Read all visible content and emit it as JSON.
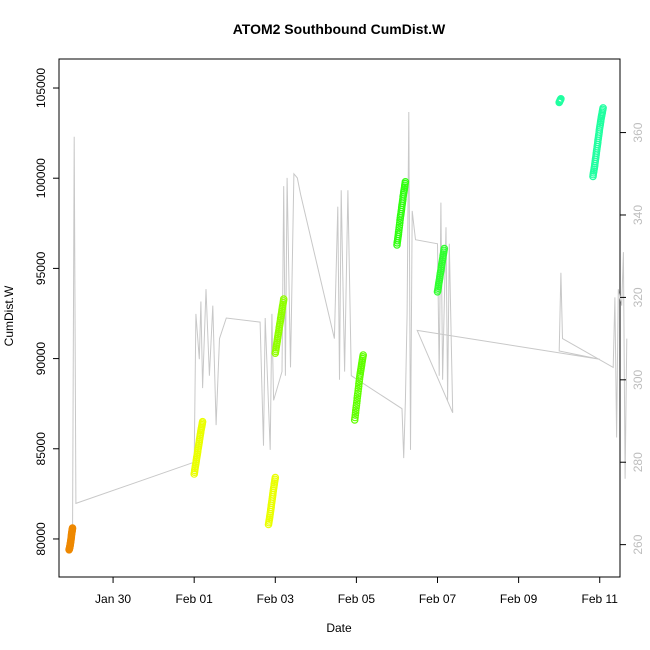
{
  "chart_data": {
    "type": "scatter",
    "title": "ATOM2 Southbound CumDist.W",
    "xlabel": "Date",
    "ylabel": "CumDist.W",
    "xlim": [
      "2023-01-28T16:00",
      "2023-02-11T12:00"
    ],
    "ylim": [
      79000,
      105500
    ],
    "y2lim": [
      257,
      373
    ],
    "x_ticks": [
      {
        "date": "2023-01-30",
        "label": "Jan 30"
      },
      {
        "date": "2023-02-01",
        "label": "Feb 01"
      },
      {
        "date": "2023-02-03",
        "label": "Feb 03"
      },
      {
        "date": "2023-02-05",
        "label": "Feb 05"
      },
      {
        "date": "2023-02-07",
        "label": "Feb 07"
      },
      {
        "date": "2023-02-09",
        "label": "Feb 09"
      },
      {
        "date": "2023-02-11",
        "label": "Feb 11"
      }
    ],
    "y_ticks": [
      80000,
      85000,
      90000,
      95000,
      100000,
      105000
    ],
    "y2_ticks": [
      260,
      280,
      300,
      320,
      340,
      360
    ],
    "grid": false,
    "legend": "none",
    "secondary_line": {
      "color": "#c8c8c8",
      "points": [
        [
          "2023-01-29T00:00",
          260
        ],
        [
          "2023-01-29T01:00",
          359
        ],
        [
          "2023-01-29T02:00",
          270
        ],
        [
          "2023-02-01T00:00",
          280
        ],
        [
          "2023-02-01T01:00",
          316
        ],
        [
          "2023-02-01T03:00",
          305
        ],
        [
          "2023-02-01T04:00",
          319
        ],
        [
          "2023-02-01T05:00",
          298
        ],
        [
          "2023-02-01T07:00",
          322
        ],
        [
          "2023-02-01T09:00",
          301
        ],
        [
          "2023-02-01T11:00",
          318
        ],
        [
          "2023-02-01T13:00",
          289
        ],
        [
          "2023-02-01T15:00",
          310
        ],
        [
          "2023-02-01T19:00",
          315
        ],
        [
          "2023-02-02T15:00",
          314
        ],
        [
          "2023-02-02T17:00",
          284
        ],
        [
          "2023-02-02T18:00",
          315
        ],
        [
          "2023-02-02T21:00",
          283
        ],
        [
          "2023-02-02T22:00",
          316
        ],
        [
          "2023-02-02T23:00",
          295
        ],
        [
          "2023-02-03T04:00",
          302
        ],
        [
          "2023-02-03T05:00",
          347
        ],
        [
          "2023-02-03T06:00",
          301
        ],
        [
          "2023-02-03T07:00",
          349
        ],
        [
          "2023-02-03T09:00",
          303
        ],
        [
          "2023-02-03T11:00",
          350
        ],
        [
          "2023-02-03T13:00",
          349
        ],
        [
          "2023-02-03T15:00",
          345
        ],
        [
          "2023-02-04T11:00",
          310
        ],
        [
          "2023-02-04T13:00",
          342
        ],
        [
          "2023-02-04T14:00",
          300
        ],
        [
          "2023-02-04T15:00",
          346
        ],
        [
          "2023-02-04T17:00",
          302
        ],
        [
          "2023-02-04T19:00",
          346
        ],
        [
          "2023-02-04T21:00",
          301
        ],
        [
          "2023-02-06T03:00",
          293
        ],
        [
          "2023-02-06T04:00",
          281
        ],
        [
          "2023-02-06T05:00",
          295
        ],
        [
          "2023-02-06T06:00",
          316
        ],
        [
          "2023-02-06T07:00",
          365
        ],
        [
          "2023-02-06T08:00",
          283
        ],
        [
          "2023-02-06T09:00",
          341
        ],
        [
          "2023-02-06T11:00",
          334
        ],
        [
          "2023-02-07T00:00",
          333
        ],
        [
          "2023-02-07T01:00",
          301
        ],
        [
          "2023-02-07T02:00",
          343
        ],
        [
          "2023-02-07T03:00",
          300
        ],
        [
          "2023-02-07T05:00",
          337
        ],
        [
          "2023-02-07T06:00",
          295
        ],
        [
          "2023-02-07T07:00",
          333
        ],
        [
          "2023-02-07T09:00",
          292
        ],
        [
          "2023-02-06T12:00",
          312
        ],
        [
          "2023-02-11T00:00",
          305
        ],
        [
          "2023-02-10T00:00",
          307
        ],
        [
          "2023-02-10T01:00",
          326
        ],
        [
          "2023-02-10T02:00",
          310
        ],
        [
          "2023-02-11T08:00",
          303
        ],
        [
          "2023-02-11T09:00",
          320
        ],
        [
          "2023-02-11T10:00",
          286
        ],
        [
          "2023-02-11T11:00",
          322
        ],
        [
          "2023-02-11T13:00",
          318
        ],
        [
          "2023-02-11T14:00",
          331
        ],
        [
          "2023-02-11T15:00",
          276
        ],
        [
          "2023-02-11T16:00",
          310
        ]
      ]
    },
    "series": [
      {
        "color": "#ee8800",
        "points": [
          [
            "2023-01-28T22:00",
            79400
          ],
          [
            "2023-01-28T22:30",
            79600
          ],
          [
            "2023-01-28T23:00",
            79900
          ],
          [
            "2023-01-28T23:30",
            80300
          ],
          [
            "2023-01-29T00:00",
            80600
          ]
        ]
      },
      {
        "color": "#eaff00",
        "points": [
          [
            "2023-02-01T00:00",
            83600
          ],
          [
            "2023-02-01T01:00",
            84200
          ],
          [
            "2023-02-01T02:00",
            84800
          ],
          [
            "2023-02-01T03:00",
            85400
          ],
          [
            "2023-02-01T04:00",
            86000
          ],
          [
            "2023-02-01T05:00",
            86500
          ]
        ]
      },
      {
        "color": "#eaff00",
        "points": [
          [
            "2023-02-02T20:00",
            80800
          ],
          [
            "2023-02-02T21:00",
            81400
          ],
          [
            "2023-02-02T22:00",
            82100
          ],
          [
            "2023-02-02T23:00",
            82800
          ],
          [
            "2023-02-03T00:00",
            83400
          ]
        ]
      },
      {
        "color": "#90ff00",
        "points": [
          [
            "2023-02-03T00:00",
            90300
          ],
          [
            "2023-02-03T01:00",
            90900
          ],
          [
            "2023-02-03T02:00",
            91500
          ],
          [
            "2023-02-03T03:00",
            92100
          ],
          [
            "2023-02-03T04:00",
            92700
          ],
          [
            "2023-02-03T05:00",
            93300
          ]
        ]
      },
      {
        "color": "#60ff00",
        "points": [
          [
            "2023-02-04T23:00",
            86600
          ],
          [
            "2023-02-05T00:00",
            87400
          ],
          [
            "2023-02-05T01:00",
            88200
          ],
          [
            "2023-02-05T02:00",
            89000
          ],
          [
            "2023-02-05T03:00",
            89600
          ],
          [
            "2023-02-05T04:00",
            90200
          ]
        ]
      },
      {
        "color": "#30ff10",
        "points": [
          [
            "2023-02-06T00:00",
            96300
          ],
          [
            "2023-02-06T01:00",
            97000
          ],
          [
            "2023-02-06T02:00",
            97800
          ],
          [
            "2023-02-06T03:00",
            98500
          ],
          [
            "2023-02-06T04:00",
            99200
          ],
          [
            "2023-02-06T05:00",
            99800
          ]
        ]
      },
      {
        "color": "#30ff30",
        "points": [
          [
            "2023-02-07T00:00",
            93700
          ],
          [
            "2023-02-07T01:00",
            94300
          ],
          [
            "2023-02-07T02:00",
            94900
          ],
          [
            "2023-02-07T03:00",
            95500
          ],
          [
            "2023-02-07T04:00",
            96100
          ]
        ]
      },
      {
        "color": "#20ffa0",
        "points": [
          [
            "2023-02-10T00:00",
            104200
          ],
          [
            "2023-02-10T01:00",
            104400
          ]
        ]
      },
      {
        "color": "#20ffa0",
        "points": [
          [
            "2023-02-10T20:00",
            100100
          ],
          [
            "2023-02-10T21:00",
            100700
          ],
          [
            "2023-02-10T22:00",
            101400
          ],
          [
            "2023-02-10T23:00",
            102100
          ],
          [
            "2023-02-11T00:00",
            102800
          ],
          [
            "2023-02-11T01:00",
            103400
          ],
          [
            "2023-02-11T02:00",
            103900
          ]
        ]
      }
    ]
  }
}
